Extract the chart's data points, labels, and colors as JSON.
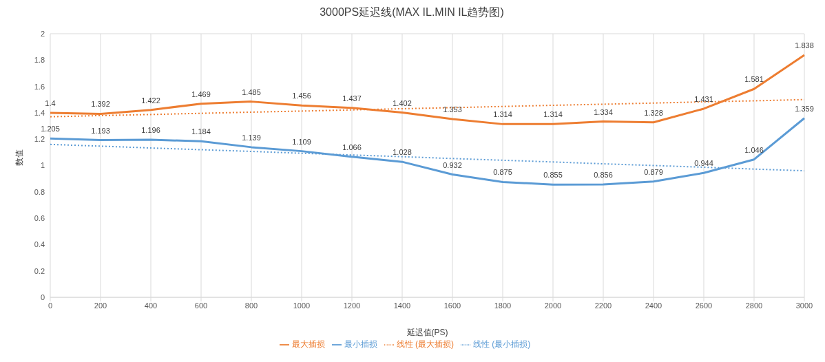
{
  "chart_data": {
    "type": "line",
    "title": "3000PS延迟线(MAX IL.MIN IL趋势图)",
    "xlabel": "延迟值(PS)",
    "ylabel": "数值",
    "categories": [
      "0",
      "200",
      "400",
      "600",
      "800",
      "1000",
      "1200",
      "1400",
      "1600",
      "1800",
      "2000",
      "2200",
      "2400",
      "2600",
      "2800",
      "3000"
    ],
    "series": [
      {
        "name": "最小插损",
        "color": "#5b9bd5",
        "line_style": "solid",
        "values": [
          1.205,
          1.193,
          1.196,
          1.184,
          1.139,
          1.109,
          1.066,
          1.028,
          0.932,
          0.875,
          0.855,
          0.856,
          0.879,
          0.944,
          1.046,
          1.359
        ],
        "value_labels": [
          "1.205",
          "1.193",
          "1.196",
          "1.184",
          "1.139",
          "1.109",
          "1.066",
          "1.028",
          "0.932",
          "0.875",
          "0.855",
          "0.856",
          "0.879",
          "0.944",
          "1.046",
          "1.359"
        ]
      },
      {
        "name": "最大插损",
        "color": "#ed7d31",
        "line_style": "solid",
        "values": [
          1.4,
          1.392,
          1.422,
          1.469,
          1.485,
          1.456,
          1.437,
          1.402,
          1.353,
          1.314,
          1.314,
          1.334,
          1.328,
          1.431,
          1.581,
          1.838
        ],
        "value_labels": [
          "1.4",
          "1.392",
          "1.422",
          "1.469",
          "1.485",
          "1.456",
          "1.437",
          "1.402",
          "1.353",
          "1.314",
          "1.314",
          "1.334",
          "1.328",
          "1.431",
          "1.581",
          "1.838"
        ]
      },
      {
        "name": "线性 (最小插损)",
        "color": "#5b9bd5",
        "line_style": "dotted",
        "values": [
          1.16,
          1.147,
          1.133,
          1.12,
          1.107,
          1.093,
          1.08,
          1.067,
          1.053,
          1.04,
          1.027,
          1.013,
          1.0,
          0.987,
          0.973,
          0.96
        ]
      },
      {
        "name": "线性 (最大插损)",
        "color": "#ed7d31",
        "line_style": "dotted",
        "values": [
          1.37,
          1.379,
          1.387,
          1.396,
          1.405,
          1.413,
          1.422,
          1.431,
          1.439,
          1.448,
          1.457,
          1.465,
          1.474,
          1.483,
          1.491,
          1.5
        ]
      }
    ],
    "ylim": [
      0,
      2
    ],
    "yticks": [
      0,
      0.2,
      0.4,
      0.6,
      0.8,
      1,
      1.2,
      1.4,
      1.6,
      1.8,
      2
    ],
    "grid": true,
    "legend": "bottom",
    "marker": "none"
  }
}
